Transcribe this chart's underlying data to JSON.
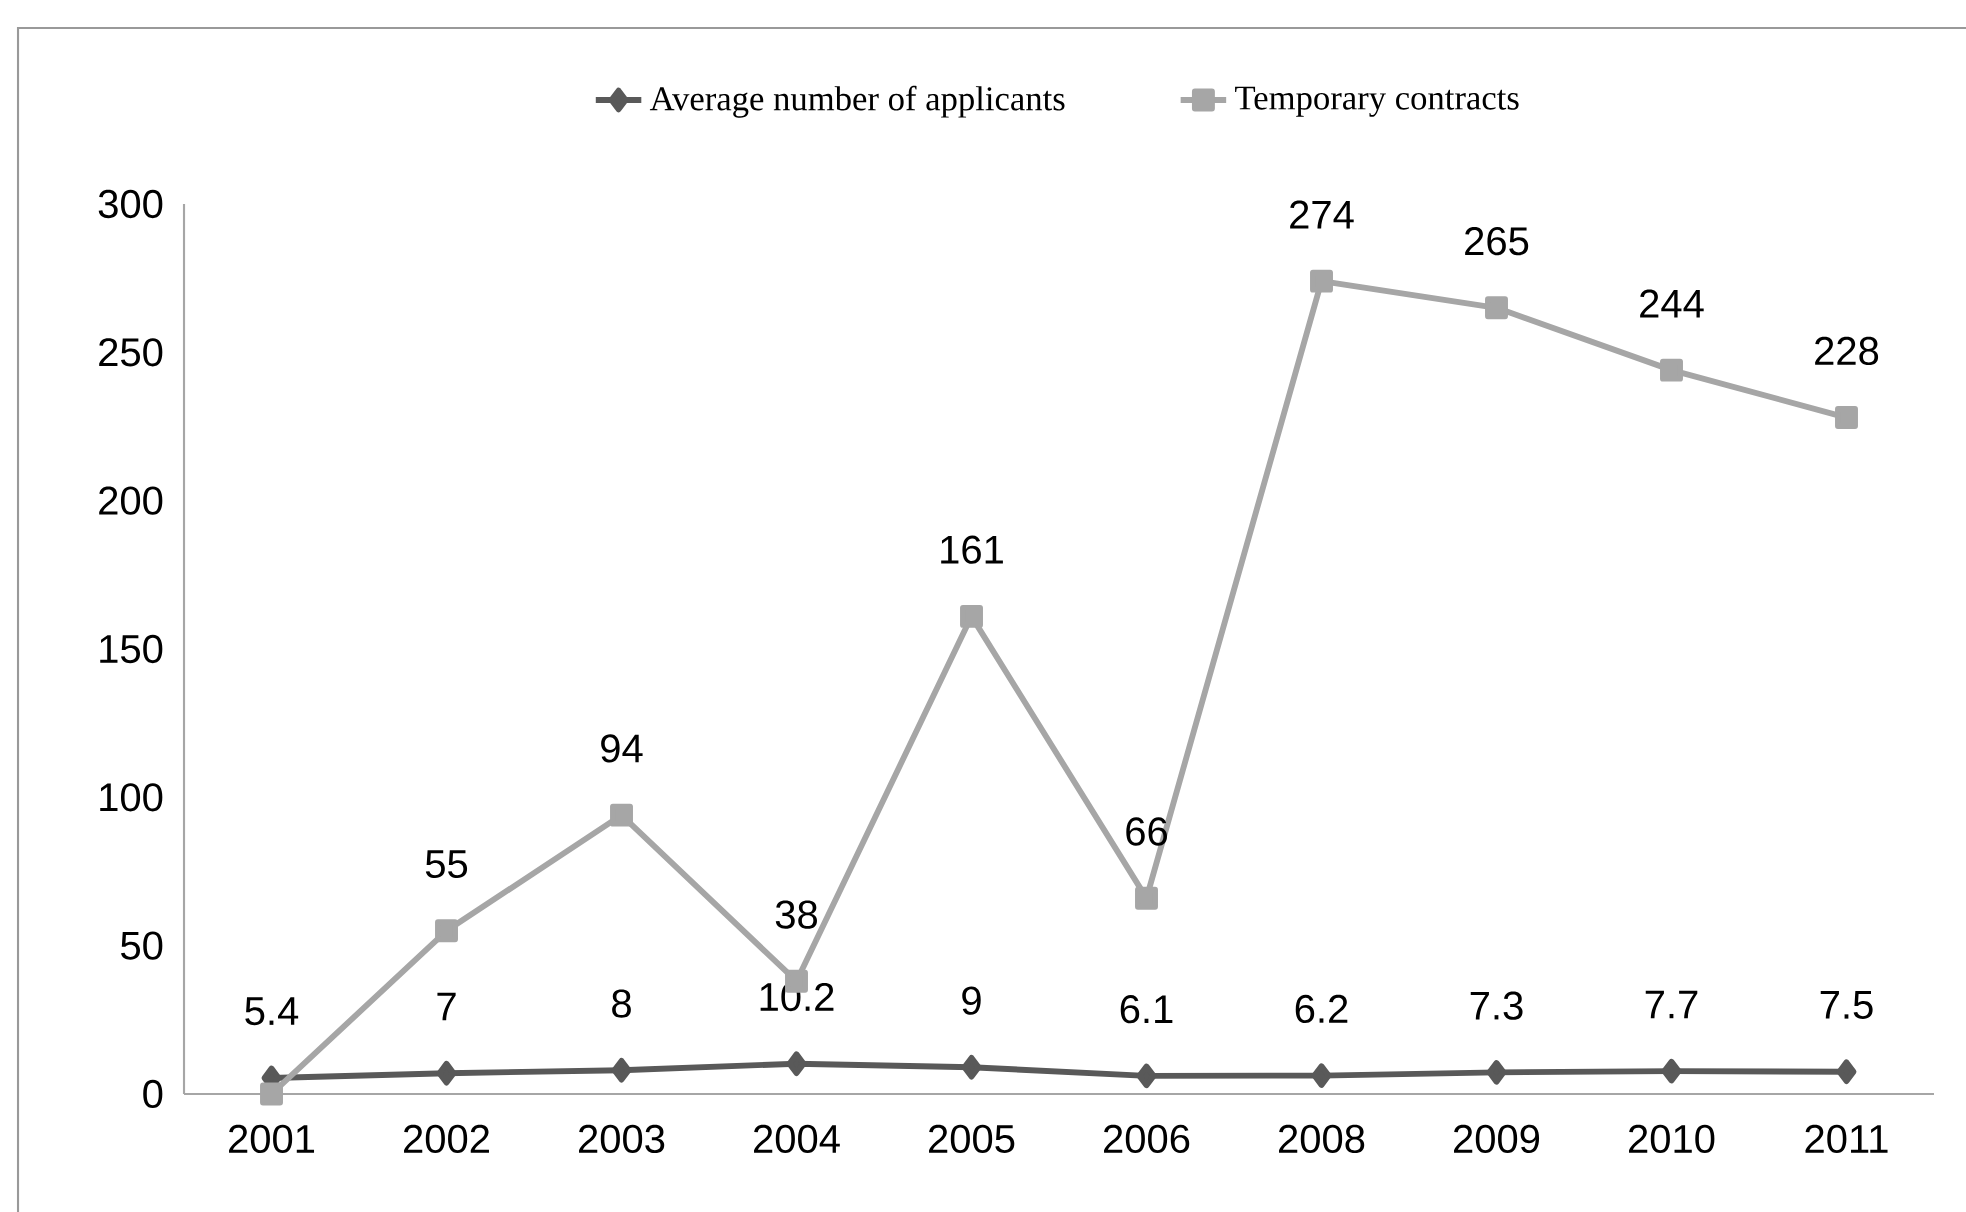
{
  "chart_data": {
    "type": "line",
    "categories": [
      "2001",
      "2002",
      "2003",
      "2004",
      "2005",
      "2006",
      "2008",
      "2009",
      "2010",
      "2011"
    ],
    "series": [
      {
        "name": "Average number of applicants",
        "color": "#595959",
        "marker": "diamond",
        "values": [
          5.4,
          7,
          8,
          10.2,
          9,
          6.1,
          6.2,
          7.3,
          7.7,
          7.5
        ],
        "value_labels": [
          "5.4",
          "7",
          "8",
          "10.2",
          "9",
          "6.1",
          "6.2",
          "7.3",
          "7.7",
          "7.5"
        ]
      },
      {
        "name": "Temporary contracts",
        "color": "#a6a6a6",
        "marker": "square",
        "values": [
          0,
          55,
          94,
          38,
          161,
          66,
          274,
          265,
          244,
          228
        ],
        "value_labels": [
          null,
          "55",
          "94",
          "38",
          "161",
          "66",
          "274",
          "265",
          "244",
          "228"
        ]
      }
    ],
    "ylim": [
      0,
      300
    ],
    "yticks": [
      0,
      50,
      100,
      150,
      200,
      250,
      300
    ],
    "legend": "top",
    "grid": false
  }
}
